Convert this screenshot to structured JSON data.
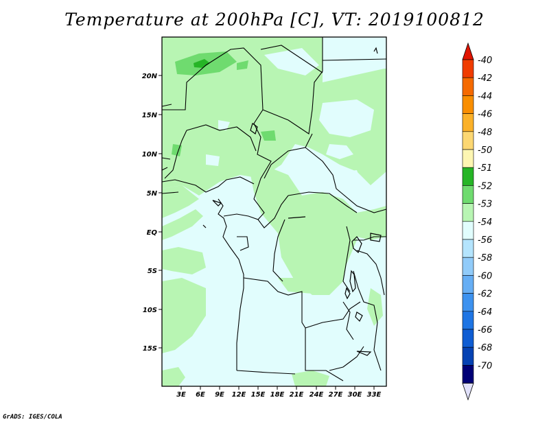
{
  "title": "Temperature at 200hPa [C], VT: 2019100812",
  "footer": "GrADS: IGES/COLA",
  "lat_labels": [
    "20N",
    "15N",
    "10N",
    "5N",
    "EQ",
    "5S",
    "10S",
    "15S"
  ],
  "lon_labels": [
    "3E",
    "6E",
    "9E",
    "12E",
    "15E",
    "18E",
    "21E",
    "24E",
    "27E",
    "30E",
    "33E"
  ],
  "colorbar": {
    "labels": [
      "-40",
      "-42",
      "-44",
      "-46",
      "-48",
      "-50",
      "-51",
      "-52",
      "-53",
      "-54",
      "-56",
      "-58",
      "-60",
      "-62",
      "-64",
      "-66",
      "-68",
      "-70"
    ],
    "colors": [
      "#f03c00",
      "#f56a00",
      "#f98e00",
      "#fbb128",
      "#fcd772",
      "#fdf6b2",
      "#26b526",
      "#6fdb6f",
      "#b8f5b3",
      "#e1fdfd",
      "#b4e4fd",
      "#91cbf9",
      "#66aef4",
      "#3d92ef",
      "#1e75e4",
      "#0f5dd3",
      "#0542b3",
      "#000076"
    ],
    "top_arrow_color": "#e11400",
    "bottom_arrow_color": "#e1e1fa"
  },
  "legend_colors": {
    "ocean_land_base": "#e1fdfd",
    "band_minus53": "#b8f5b3",
    "band_minus52": "#6fdb6f",
    "band_minus51": "#26b526"
  }
}
